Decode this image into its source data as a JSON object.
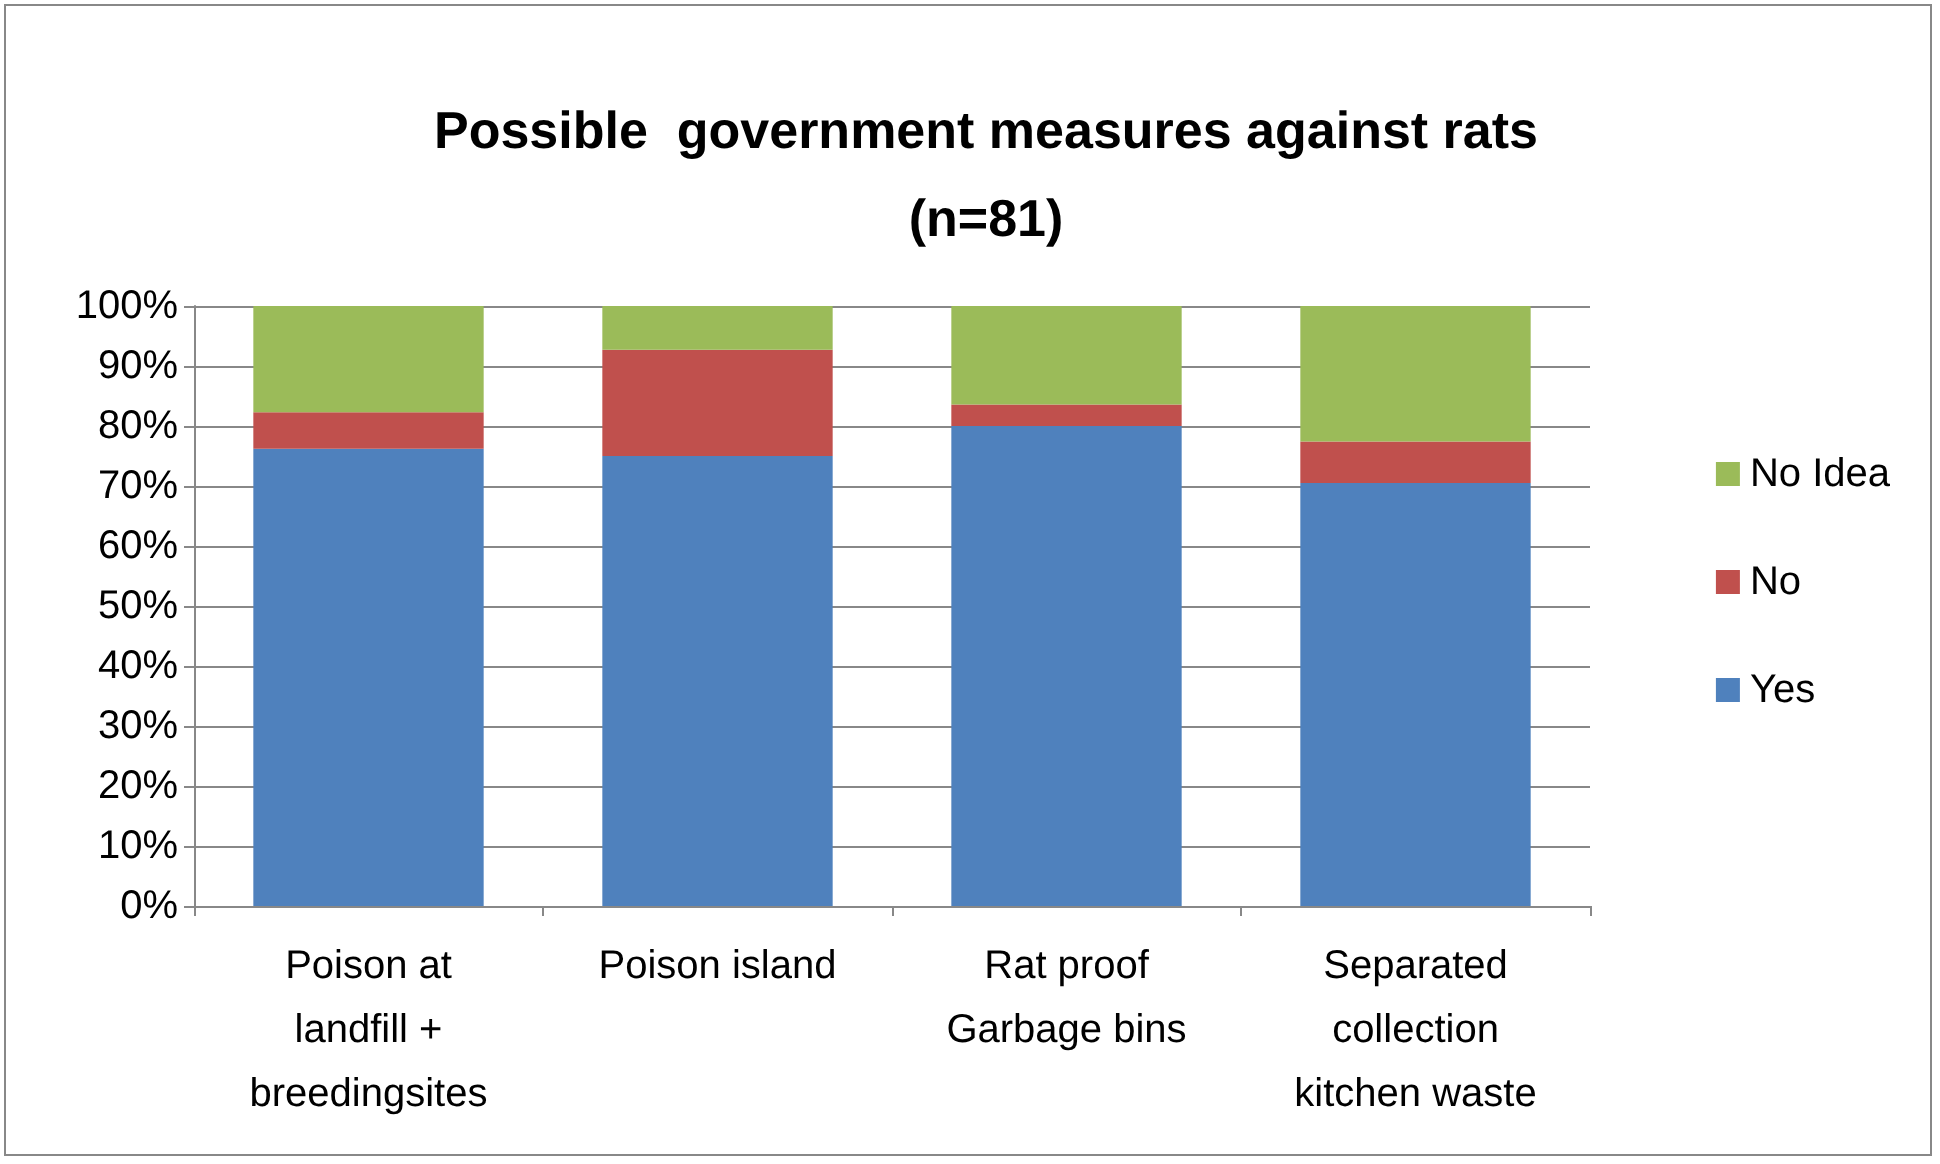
{
  "chart_data": {
    "type": "bar",
    "title": "Possible  government measures against rats\n(n=81)",
    "categories": [
      "Poison at\nlandfill +\nbreedingsites",
      "Poison island",
      "Rat proof\nGarbage bins",
      "Separated\ncollection\nkitchen waste"
    ],
    "series": [
      {
        "name": "Yes",
        "color": "#4f81bd",
        "values": [
          76.2,
          75.0,
          80.0,
          70.5
        ]
      },
      {
        "name": "No",
        "color": "#c0504d",
        "values": [
          6.1,
          17.7,
          3.6,
          6.9
        ]
      },
      {
        "name": "No Idea",
        "color": "#9bbb59",
        "values": [
          17.7,
          7.3,
          16.4,
          22.6
        ]
      }
    ],
    "stacked": true,
    "ylim": [
      0,
      100
    ],
    "yticks": [
      {
        "value": 0,
        "label": "0%"
      },
      {
        "value": 10,
        "label": "10%"
      },
      {
        "value": 20,
        "label": "20%"
      },
      {
        "value": 30,
        "label": "30%"
      },
      {
        "value": 40,
        "label": "40%"
      },
      {
        "value": 50,
        "label": "50%"
      },
      {
        "value": 60,
        "label": "60%"
      },
      {
        "value": 70,
        "label": "70%"
      },
      {
        "value": 80,
        "label": "80%"
      },
      {
        "value": 90,
        "label": "90%"
      },
      {
        "value": 100,
        "label": "100%"
      }
    ],
    "grid": "y",
    "legend": "right"
  }
}
